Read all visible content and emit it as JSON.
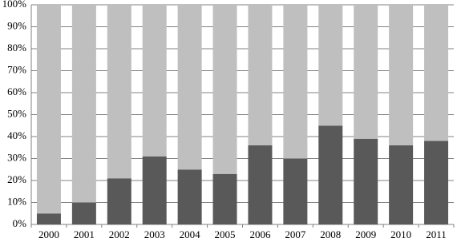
{
  "chart_data": {
    "type": "stacked_bar",
    "categories": [
      "2000",
      "2001",
      "2002",
      "2003",
      "2004",
      "2005",
      "2006",
      "2007",
      "2008",
      "2009",
      "2010",
      "2011"
    ],
    "series": [
      {
        "color": "#595959",
        "values": [
          5,
          10,
          21,
          31,
          25,
          23,
          36,
          30,
          45,
          39,
          36,
          38
        ]
      },
      {
        "color": "#bfbfbf",
        "values": [
          95,
          90,
          79,
          69,
          75,
          77,
          64,
          70,
          55,
          61,
          64,
          62
        ]
      }
    ],
    "ylim": [
      0,
      100
    ],
    "yticks": [
      {
        "value": 0,
        "label": "0%"
      },
      {
        "value": 10,
        "label": "10%"
      },
      {
        "value": 20,
        "label": "20%"
      },
      {
        "value": 30,
        "label": "30%"
      },
      {
        "value": 40,
        "label": "40%"
      },
      {
        "value": 50,
        "label": "50%"
      },
      {
        "value": 60,
        "label": "60%"
      },
      {
        "value": 70,
        "label": "70%"
      },
      {
        "value": 80,
        "label": "80%"
      },
      {
        "value": 90,
        "label": "90%"
      },
      {
        "value": 100,
        "label": "100%"
      }
    ],
    "grid": true
  }
}
